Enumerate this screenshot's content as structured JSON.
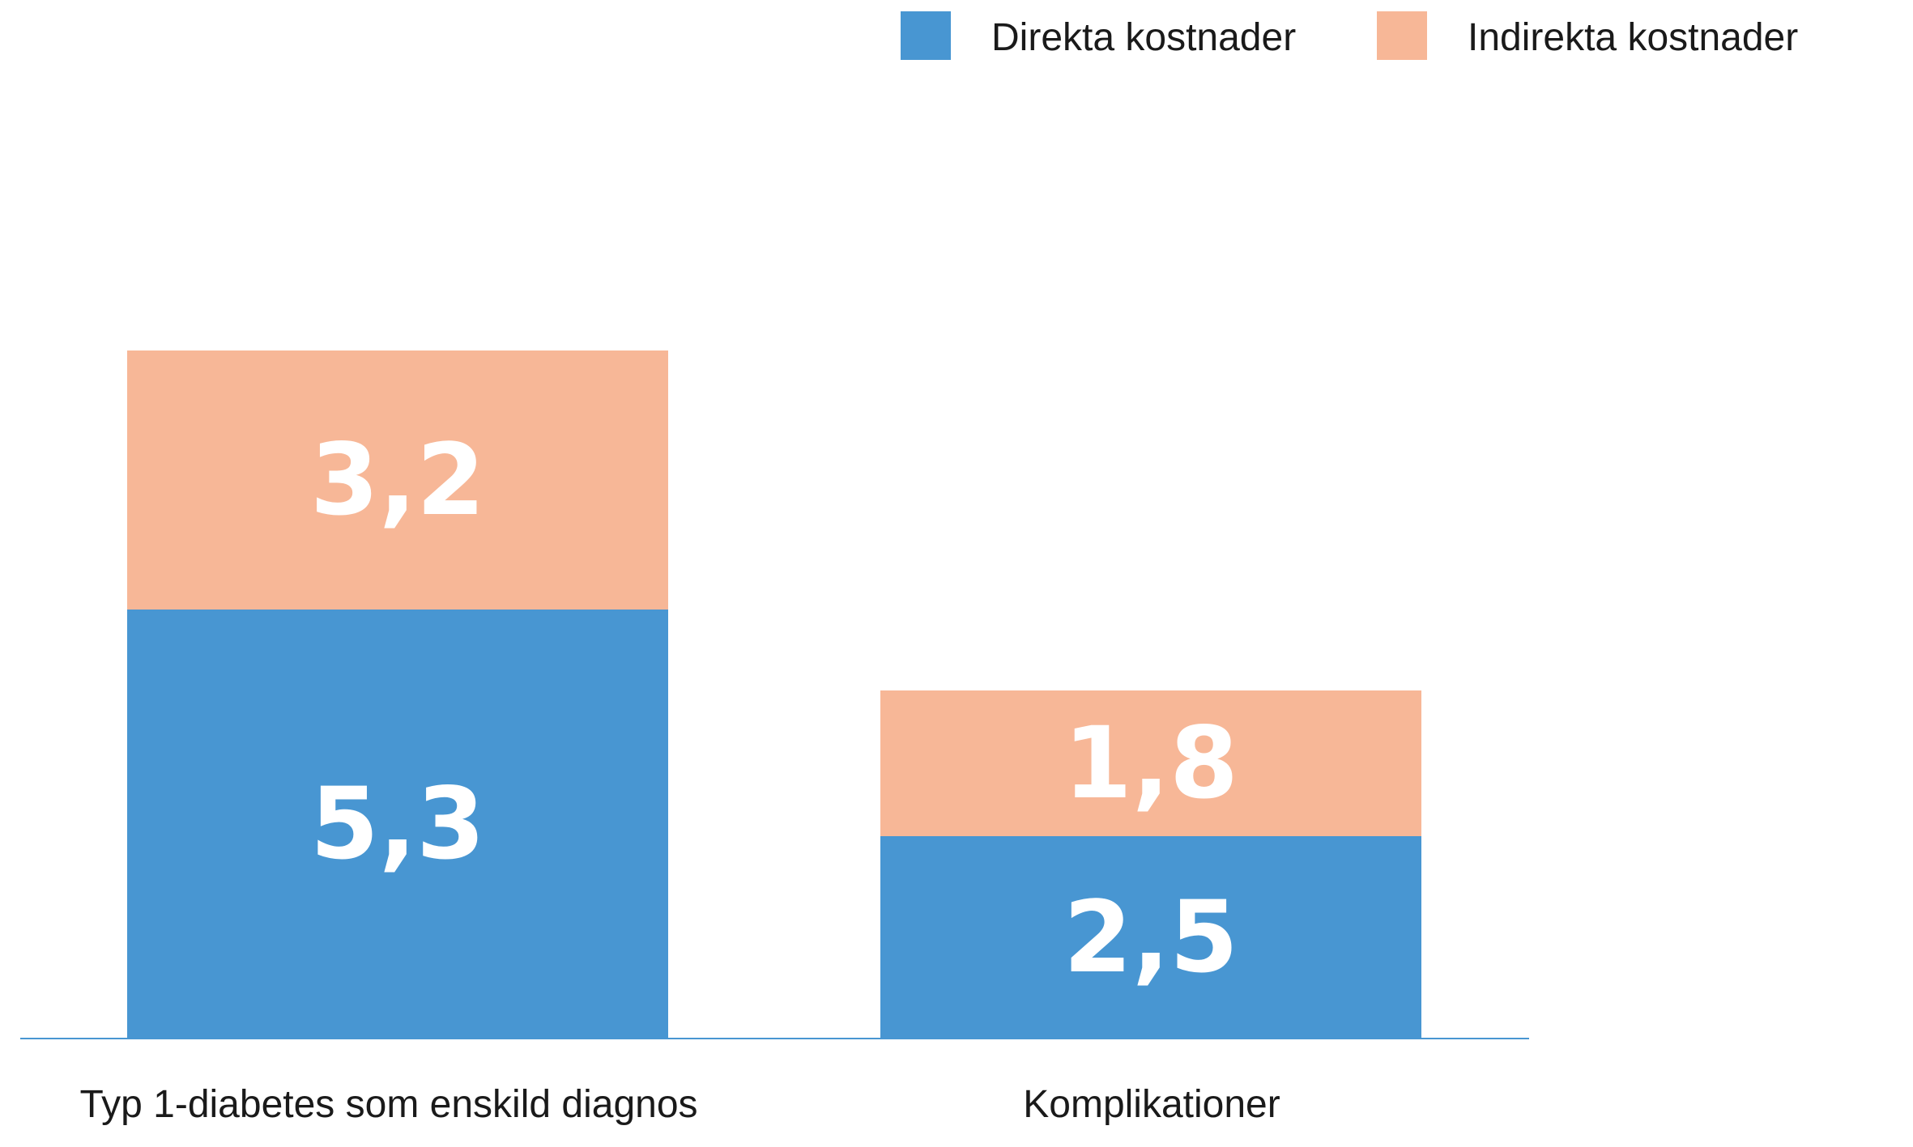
{
  "chart_data": {
    "type": "bar",
    "stacked": true,
    "categories": [
      "Typ 1-diabetes som enskild diagnos",
      "Komplikationer"
    ],
    "series": [
      {
        "name": "Direkta kostnader",
        "values": [
          5.3,
          2.5
        ],
        "labels": [
          "5,3",
          "2,5"
        ],
        "color": "#4896d2"
      },
      {
        "name": "Indirekta kostnader",
        "values": [
          3.2,
          1.8
        ],
        "labels": [
          "3,2",
          "1,8"
        ],
        "color": "#f7b797"
      }
    ],
    "title": "",
    "xlabel": "",
    "ylabel": "",
    "ylim": [
      0,
      8.5
    ],
    "grid": false,
    "legend_position": "top-right",
    "baseline_color": "#4896d2"
  }
}
